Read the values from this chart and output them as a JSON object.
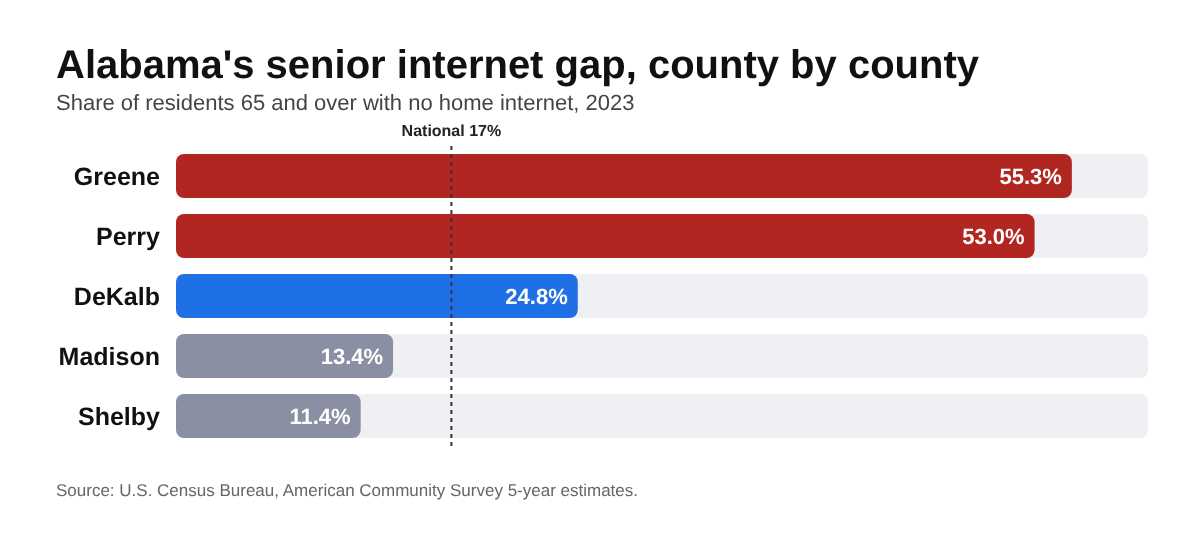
{
  "chart_data": {
    "type": "bar",
    "orientation": "horizontal",
    "title": "Alabama's senior internet gap, county by county",
    "subtitle": "Share of residents 65 and over with no home internet, 2023",
    "categories": [
      "Greene",
      "Perry",
      "DeKalb",
      "Madison",
      "Shelby"
    ],
    "values": [
      55.3,
      53.0,
      24.8,
      13.4,
      11.4
    ],
    "colors": [
      "#b22622",
      "#b22622",
      "#1f6fe5",
      "#8a8fa3",
      "#8a8fa3"
    ],
    "value_labels": [
      "55.3%",
      "53.0%",
      "24.8%",
      "13.4%",
      "11.4%"
    ],
    "xlim": [
      0,
      60
    ],
    "ref_lines": [
      {
        "axis": "x",
        "value": 17,
        "label": "National 17%",
        "color": "#333333",
        "line_style": "dotted"
      }
    ],
    "annotations": [
      "Source: U.S. Census Bureau, American Community Survey 5-year estimates."
    ],
    "grid": false,
    "legend": false
  }
}
